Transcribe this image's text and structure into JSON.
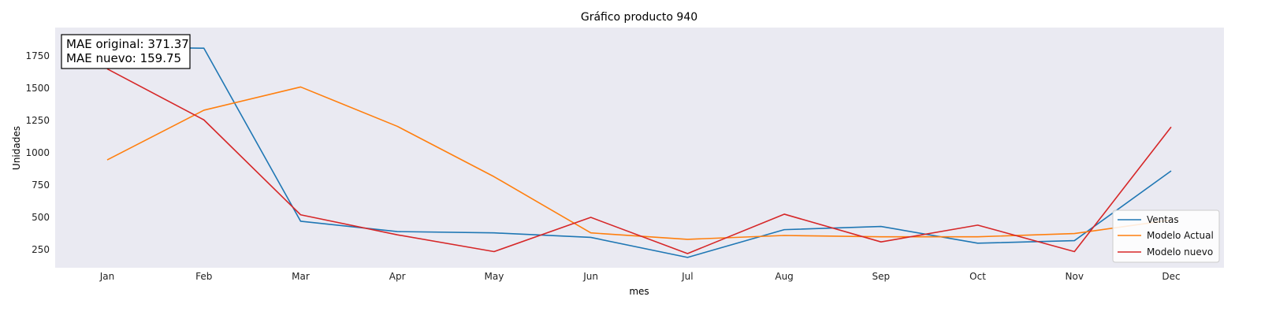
{
  "chart_data": {
    "type": "line",
    "title": "Gráfico producto 940",
    "xlabel": "mes",
    "ylabel": "Unidades",
    "categories": [
      "Jan",
      "Feb",
      "Mar",
      "Apr",
      "May",
      "Jun",
      "Jul",
      "Aug",
      "Sep",
      "Oct",
      "Nov",
      "Dec"
    ],
    "y_ticks": [
      250,
      500,
      750,
      1000,
      1250,
      1500,
      1750
    ],
    "y_tick_labels": [
      "250",
      "500",
      "750",
      "1000",
      "1250",
      "1500",
      "1750"
    ],
    "ylim": [
      110,
      1970
    ],
    "grid": false,
    "background": "#eaeaf2",
    "legend_position": "lower-right",
    "series": [
      {
        "name": "Ventas",
        "color": "#1f77b4",
        "values": [
          1820,
          1810,
          470,
          390,
          380,
          345,
          190,
          405,
          430,
          300,
          320,
          860
        ]
      },
      {
        "name": "Modelo Actual",
        "color": "#ff7f0e",
        "values": [
          945,
          1330,
          1510,
          1205,
          815,
          380,
          330,
          360,
          350,
          350,
          375,
          480
        ]
      },
      {
        "name": "Modelo nuevo",
        "color": "#d62728",
        "values": [
          1650,
          1255,
          520,
          365,
          235,
          500,
          220,
          525,
          310,
          440,
          235,
          1200
        ]
      }
    ],
    "annotation": {
      "line1": "MAE original: 371.37",
      "line2": "MAE nuevo: 159.75"
    }
  }
}
